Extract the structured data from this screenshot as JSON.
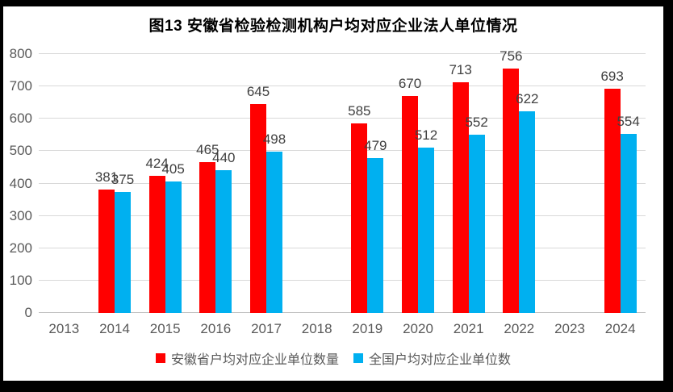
{
  "frame": {
    "border_color": "#000000",
    "background": "#ffffff"
  },
  "chart_data": {
    "type": "bar",
    "title": "图13  安徽省检验检测机构户均对应企业法人单位情况",
    "categories": [
      "2013",
      "2014",
      "2015",
      "2016",
      "2017",
      "2018",
      "2019",
      "2020",
      "2021",
      "2022",
      "2023",
      "2024"
    ],
    "series": [
      {
        "key": "anhui",
        "name": "安徽省户均对应企业单位数量",
        "color": "#FF0000",
        "values": [
          null,
          381,
          424,
          465,
          645,
          null,
          585,
          670,
          713,
          756,
          null,
          693
        ]
      },
      {
        "key": "national",
        "name": "全国户均对应企业单位数",
        "color": "#00B0F0",
        "values": [
          null,
          375,
          405,
          440,
          498,
          null,
          479,
          512,
          552,
          622,
          null,
          554
        ]
      }
    ],
    "xlabel": "",
    "ylabel": "",
    "ylim": [
      0,
      800
    ],
    "ytick_interval": 100,
    "grid": true,
    "legend_position": "bottom",
    "colors": {
      "gridline": "#d9d9d9",
      "tick_label": "#595959",
      "data_label": "#404040",
      "title": "#000000"
    }
  }
}
